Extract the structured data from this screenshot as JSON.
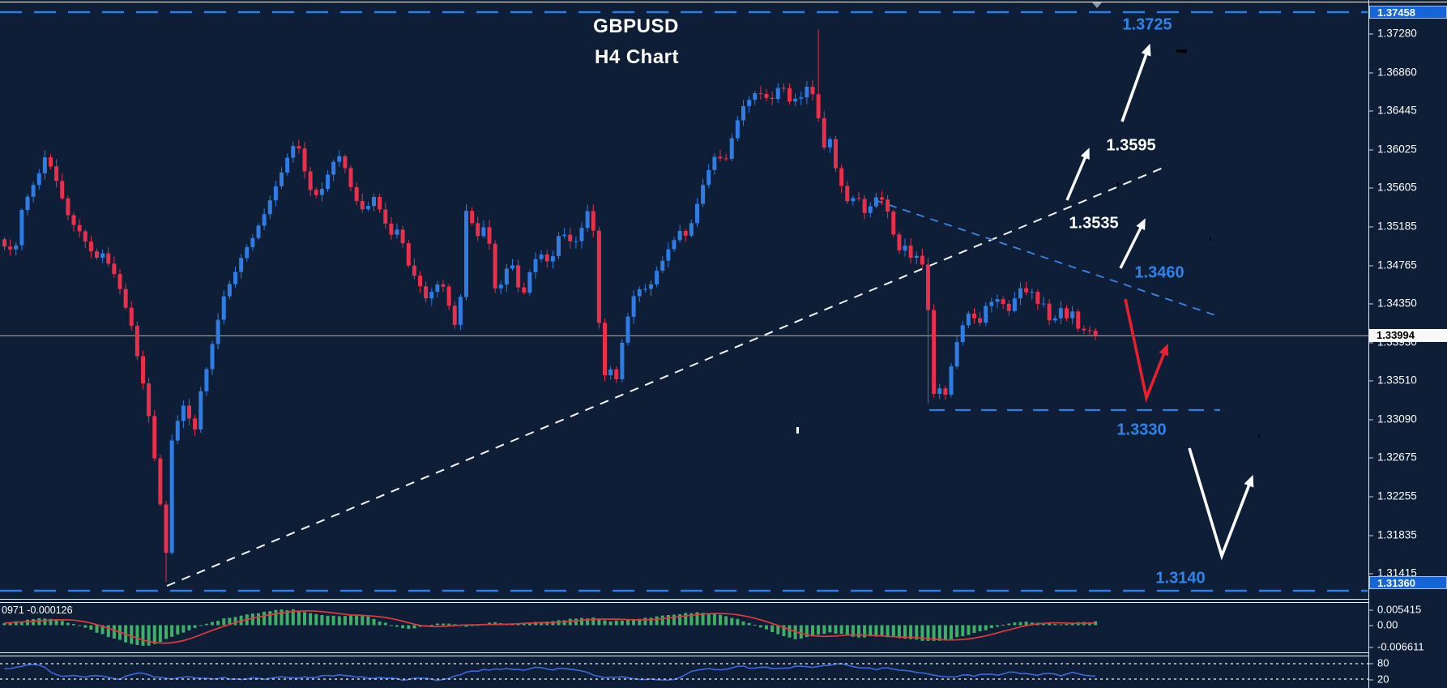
{
  "window": {
    "title_line1": "GBPUSD",
    "title_line2": "H4 Chart"
  },
  "colors": {
    "background": "#0d1e36",
    "candle_up": "#2e7ce4",
    "candle_down": "#ea2f4a",
    "macd_histogram": "#3fae68",
    "macd_signal": "#e03a3a",
    "stochastic_line": "#3b68dc",
    "level_line_blue": "#2e7ee6",
    "trendline_white": "#f5f5f5",
    "annotation_blue": "#2e84ea",
    "annotation_white": "#ffffff",
    "current_price_line": "#aab2ba"
  },
  "price_axis": {
    "ticks": [
      "1.37280",
      "1.36860",
      "1.36445",
      "1.36025",
      "1.35605",
      "1.35185",
      "1.34765",
      "1.34350",
      "1.33930",
      "1.33510",
      "1.33090",
      "1.32675",
      "1.32255",
      "1.31835",
      "1.31415"
    ],
    "top_box": "1.37458",
    "current_box": "1.33994",
    "bottom_box": "1.31360"
  },
  "annotations": {
    "resistance_top": {
      "text": "1.3725",
      "color": "#2e84ea"
    },
    "target_upper": {
      "text": "1.3595",
      "color": "#ffffff"
    },
    "broken_level": {
      "text": "1.3535",
      "color": "#ffffff"
    },
    "lower_high": {
      "text": "1.3460",
      "color": "#2e84ea"
    },
    "support_mid": {
      "text": "1.3330",
      "color": "#2e84ea"
    },
    "support_bottom": {
      "text": "1.3140",
      "color": "#2e84ea"
    }
  },
  "chart_data": {
    "type": "candlestick",
    "symbol": "GBPUSD",
    "timeframe": "H4",
    "title": "GBPUSD H4 Chart",
    "candle_count": 190,
    "seed": 9,
    "current_price": 1.33994,
    "levels": [
      {
        "price": 1.3725,
        "style": "dashed-blue-horizontal"
      },
      {
        "price": 1.3595,
        "style": "label-target"
      },
      {
        "price": 1.3535,
        "style": "label-trendline"
      },
      {
        "price": 1.346,
        "style": "dashed-blue-descending"
      },
      {
        "price": 1.333,
        "style": "dashed-blue-horizontal-segment"
      },
      {
        "price": 1.314,
        "style": "dashed-blue-horizontal"
      }
    ],
    "close_path": [
      [
        0,
        1.35
      ],
      [
        15,
        1.3488
      ],
      [
        25,
        1.3538
      ],
      [
        40,
        1.3565
      ],
      [
        53,
        1.3592
      ],
      [
        60,
        1.3585
      ],
      [
        70,
        1.356
      ],
      [
        80,
        1.3532
      ],
      [
        95,
        1.3512
      ],
      [
        105,
        1.35
      ],
      [
        115,
        1.348
      ],
      [
        122,
        1.3493
      ],
      [
        130,
        1.348
      ],
      [
        140,
        1.3462
      ],
      [
        150,
        1.3438
      ],
      [
        160,
        1.3408
      ],
      [
        170,
        1.3365
      ],
      [
        180,
        1.332
      ],
      [
        188,
        1.327
      ],
      [
        196,
        1.321
      ],
      [
        202,
        1.3152
      ],
      [
        207,
        1.328
      ],
      [
        214,
        1.3295
      ],
      [
        222,
        1.333
      ],
      [
        230,
        1.331
      ],
      [
        238,
        1.3296
      ],
      [
        246,
        1.3345
      ],
      [
        254,
        1.337
      ],
      [
        262,
        1.34
      ],
      [
        272,
        1.3438
      ],
      [
        280,
        1.3455
      ],
      [
        290,
        1.3472
      ],
      [
        300,
        1.3492
      ],
      [
        310,
        1.3508
      ],
      [
        320,
        1.3525
      ],
      [
        330,
        1.3545
      ],
      [
        340,
        1.3565
      ],
      [
        350,
        1.3588
      ],
      [
        358,
        1.3605
      ],
      [
        365,
        1.3608
      ],
      [
        370,
        1.3588
      ],
      [
        380,
        1.356
      ],
      [
        390,
        1.3548
      ],
      [
        400,
        1.357
      ],
      [
        410,
        1.359
      ],
      [
        418,
        1.3595
      ],
      [
        425,
        1.3575
      ],
      [
        432,
        1.3555
      ],
      [
        440,
        1.3545
      ],
      [
        448,
        1.353
      ],
      [
        455,
        1.3552
      ],
      [
        462,
        1.3548
      ],
      [
        470,
        1.3525
      ],
      [
        480,
        1.3508
      ],
      [
        490,
        1.3515
      ],
      [
        500,
        1.348
      ],
      [
        510,
        1.3462
      ],
      [
        518,
        1.3448
      ],
      [
        526,
        1.3438
      ],
      [
        534,
        1.3452
      ],
      [
        542,
        1.3458
      ],
      [
        550,
        1.3438
      ],
      [
        558,
        1.3412
      ],
      [
        564,
        1.3398
      ],
      [
        570,
        1.354
      ],
      [
        578,
        1.3525
      ],
      [
        586,
        1.3508
      ],
      [
        594,
        1.3518
      ],
      [
        602,
        1.3498
      ],
      [
        610,
        1.3442
      ],
      [
        618,
        1.346
      ],
      [
        626,
        1.3482
      ],
      [
        634,
        1.347
      ],
      [
        640,
        1.3438
      ],
      [
        646,
        1.3448
      ],
      [
        652,
        1.347
      ],
      [
        658,
        1.3482
      ],
      [
        664,
        1.3488
      ],
      [
        672,
        1.3478
      ],
      [
        680,
        1.3488
      ],
      [
        688,
        1.3512
      ],
      [
        696,
        1.3508
      ],
      [
        704,
        1.3498
      ],
      [
        712,
        1.3508
      ],
      [
        720,
        1.353
      ],
      [
        728,
        1.354
      ],
      [
        734,
        1.3448
      ],
      [
        740,
        1.338
      ],
      [
        746,
        1.3345
      ],
      [
        752,
        1.3368
      ],
      [
        758,
        1.3352
      ],
      [
        764,
        1.3388
      ],
      [
        772,
        1.342
      ],
      [
        780,
        1.3445
      ],
      [
        788,
        1.3452
      ],
      [
        796,
        1.3448
      ],
      [
        804,
        1.3462
      ],
      [
        812,
        1.3475
      ],
      [
        820,
        1.3488
      ],
      [
        828,
        1.3502
      ],
      [
        836,
        1.3512
      ],
      [
        844,
        1.3508
      ],
      [
        852,
        1.3522
      ],
      [
        860,
        1.3548
      ],
      [
        868,
        1.3572
      ],
      [
        876,
        1.3588
      ],
      [
        884,
        1.3598
      ],
      [
        890,
        1.358
      ],
      [
        896,
        1.3602
      ],
      [
        902,
        1.3618
      ],
      [
        910,
        1.364
      ],
      [
        918,
        1.3652
      ],
      [
        926,
        1.366
      ],
      [
        934,
        1.3668
      ],
      [
        940,
        1.365
      ],
      [
        946,
        1.3662
      ],
      [
        952,
        1.3655
      ],
      [
        958,
        1.3668
      ],
      [
        964,
        1.3672
      ],
      [
        970,
        1.366
      ],
      [
        976,
        1.3648
      ],
      [
        982,
        1.3662
      ],
      [
        988,
        1.3655
      ],
      [
        994,
        1.367
      ],
      [
        1000,
        1.3662
      ],
      [
        1005,
        1.3648
      ],
      [
        1010,
        1.3622
      ],
      [
        1016,
        1.3598
      ],
      [
        1022,
        1.3612
      ],
      [
        1028,
        1.3585
      ],
      [
        1034,
        1.3568
      ],
      [
        1040,
        1.3552
      ],
      [
        1046,
        1.3538
      ],
      [
        1052,
        1.3555
      ],
      [
        1058,
        1.3548
      ],
      [
        1064,
        1.3532
      ],
      [
        1070,
        1.3538
      ],
      [
        1076,
        1.3545
      ],
      [
        1082,
        1.3552
      ],
      [
        1088,
        1.3548
      ],
      [
        1094,
        1.3532
      ],
      [
        1100,
        1.3512
      ],
      [
        1106,
        1.3488
      ],
      [
        1112,
        1.3502
      ],
      [
        1118,
        1.3492
      ],
      [
        1124,
        1.3478
      ],
      [
        1130,
        1.3488
      ],
      [
        1136,
        1.3478
      ],
      [
        1142,
        1.3455
      ],
      [
        1146,
        1.3348
      ],
      [
        1152,
        1.333
      ],
      [
        1158,
        1.3345
      ],
      [
        1164,
        1.3332
      ],
      [
        1170,
        1.3362
      ],
      [
        1176,
        1.3385
      ],
      [
        1182,
        1.3402
      ],
      [
        1188,
        1.3415
      ],
      [
        1194,
        1.3428
      ],
      [
        1200,
        1.342
      ],
      [
        1206,
        1.3412
      ],
      [
        1212,
        1.3428
      ],
      [
        1218,
        1.3438
      ],
      [
        1224,
        1.3432
      ],
      [
        1230,
        1.3442
      ],
      [
        1236,
        1.3435
      ],
      [
        1242,
        1.3425
      ],
      [
        1248,
        1.3438
      ],
      [
        1254,
        1.3448
      ],
      [
        1260,
        1.3452
      ],
      [
        1266,
        1.3442
      ],
      [
        1272,
        1.3448
      ],
      [
        1278,
        1.3432
      ],
      [
        1284,
        1.3438
      ],
      [
        1290,
        1.3422
      ],
      [
        1296,
        1.3412
      ],
      [
        1302,
        1.3425
      ],
      [
        1308,
        1.3432
      ],
      [
        1314,
        1.3418
      ],
      [
        1320,
        1.3428
      ],
      [
        1326,
        1.3412
      ],
      [
        1332,
        1.3398
      ],
      [
        1338,
        1.3412
      ],
      [
        1344,
        1.3402
      ],
      [
        1350,
        1.3388
      ],
      [
        1353,
        1.33994
      ]
    ],
    "overrides": [
      {
        "index": 28,
        "low": 1.3132
      },
      {
        "index": 141,
        "high": 1.3732
      },
      {
        "index": 160,
        "low": 1.3326
      }
    ],
    "macd": {
      "scale_max_label": "0.005415",
      "zero_label": "0.00",
      "scale_min_label": "-0.006611",
      "caption": "0971 -0.000126",
      "path": [
        [
          0,
          0.0006
        ],
        [
          25,
          0.0012
        ],
        [
          50,
          0.0019
        ],
        [
          70,
          0.0013
        ],
        [
          88,
          0.0004
        ],
        [
          100,
          -0.0006
        ],
        [
          130,
          -0.003
        ],
        [
          155,
          -0.0048
        ],
        [
          175,
          -0.0058
        ],
        [
          195,
          -0.0046
        ],
        [
          215,
          -0.0028
        ],
        [
          235,
          -0.001
        ],
        [
          250,
          0.0004
        ],
        [
          275,
          0.0018
        ],
        [
          305,
          0.003
        ],
        [
          335,
          0.004
        ],
        [
          358,
          0.0043
        ],
        [
          380,
          0.0034
        ],
        [
          400,
          0.0026
        ],
        [
          420,
          0.0024
        ],
        [
          445,
          0.0028
        ],
        [
          455,
          0.0022
        ],
        [
          470,
          0.0008
        ],
        [
          485,
          -0.0004
        ],
        [
          500,
          -0.001
        ],
        [
          515,
          -0.0006
        ],
        [
          530,
          0.0002
        ],
        [
          545,
          0.0006
        ],
        [
          560,
          0.0002
        ],
        [
          575,
          -0.0004
        ],
        [
          590,
          0.0002
        ],
        [
          610,
          0.0008
        ],
        [
          630,
          0.0004
        ],
        [
          650,
          0.0006
        ],
        [
          670,
          0.001
        ],
        [
          690,
          0.0014
        ],
        [
          710,
          0.0018
        ],
        [
          730,
          0.002
        ],
        [
          750,
          0.001
        ],
        [
          770,
          0.0014
        ],
        [
          790,
          0.0018
        ],
        [
          815,
          0.0026
        ],
        [
          840,
          0.0032
        ],
        [
          865,
          0.0035
        ],
        [
          890,
          0.0028
        ],
        [
          910,
          0.0015
        ],
        [
          925,
          0.0004
        ],
        [
          940,
          -0.0008
        ],
        [
          960,
          -0.0026
        ],
        [
          980,
          -0.0038
        ],
        [
          1000,
          -0.003
        ],
        [
          1020,
          -0.002
        ],
        [
          1040,
          -0.0026
        ],
        [
          1060,
          -0.0034
        ],
        [
          1080,
          -0.003
        ],
        [
          1100,
          -0.0032
        ],
        [
          1125,
          -0.004
        ],
        [
          1150,
          -0.0044
        ],
        [
          1175,
          -0.0036
        ],
        [
          1200,
          -0.0022
        ],
        [
          1225,
          -0.0006
        ],
        [
          1245,
          0.0006
        ],
        [
          1265,
          0.001
        ],
        [
          1285,
          0.0006
        ],
        [
          1305,
          0.0002
        ],
        [
          1320,
          0.0006
        ],
        [
          1335,
          0.0008
        ],
        [
          1353,
          0.001
        ]
      ]
    },
    "stochastic": {
      "upper_level_label": "80",
      "lower_level_label": "20",
      "path": [
        [
          0,
          60
        ],
        [
          20,
          68
        ],
        [
          40,
          80
        ],
        [
          55,
          60
        ],
        [
          70,
          30
        ],
        [
          85,
          34
        ],
        [
          100,
          27
        ],
        [
          115,
          38
        ],
        [
          130,
          30
        ],
        [
          145,
          16
        ],
        [
          160,
          40
        ],
        [
          175,
          46
        ],
        [
          190,
          28
        ],
        [
          210,
          20
        ],
        [
          230,
          28
        ],
        [
          250,
          20
        ],
        [
          270,
          26
        ],
        [
          290,
          17
        ],
        [
          310,
          24
        ],
        [
          330,
          19
        ],
        [
          350,
          30
        ],
        [
          370,
          25
        ],
        [
          395,
          30
        ],
        [
          420,
          37
        ],
        [
          445,
          27
        ],
        [
          470,
          24
        ],
        [
          495,
          17
        ],
        [
          515,
          24
        ],
        [
          535,
          15
        ],
        [
          555,
          26
        ],
        [
          575,
          50
        ],
        [
          600,
          58
        ],
        [
          620,
          60
        ],
        [
          640,
          56
        ],
        [
          660,
          64
        ],
        [
          680,
          58
        ],
        [
          700,
          62
        ],
        [
          715,
          54
        ],
        [
          730,
          34
        ],
        [
          745,
          24
        ],
        [
          760,
          30
        ],
        [
          775,
          24
        ],
        [
          790,
          14
        ],
        [
          805,
          22
        ],
        [
          820,
          12
        ],
        [
          840,
          30
        ],
        [
          855,
          56
        ],
        [
          870,
          60
        ],
        [
          885,
          52
        ],
        [
          900,
          64
        ],
        [
          915,
          70
        ],
        [
          930,
          60
        ],
        [
          945,
          67
        ],
        [
          960,
          58
        ],
        [
          975,
          65
        ],
        [
          990,
          72
        ],
        [
          1005,
          67
        ],
        [
          1020,
          74
        ],
        [
          1035,
          78
        ],
        [
          1050,
          71
        ],
        [
          1065,
          63
        ],
        [
          1080,
          58
        ],
        [
          1095,
          64
        ],
        [
          1110,
          56
        ],
        [
          1125,
          46
        ],
        [
          1140,
          40
        ],
        [
          1155,
          32
        ],
        [
          1170,
          27
        ],
        [
          1185,
          37
        ],
        [
          1200,
          31
        ],
        [
          1215,
          41
        ],
        [
          1230,
          37
        ],
        [
          1245,
          47
        ],
        [
          1260,
          41
        ],
        [
          1275,
          34
        ],
        [
          1290,
          41
        ],
        [
          1305,
          34
        ],
        [
          1320,
          44
        ],
        [
          1335,
          37
        ],
        [
          1353,
          33
        ]
      ]
    }
  }
}
